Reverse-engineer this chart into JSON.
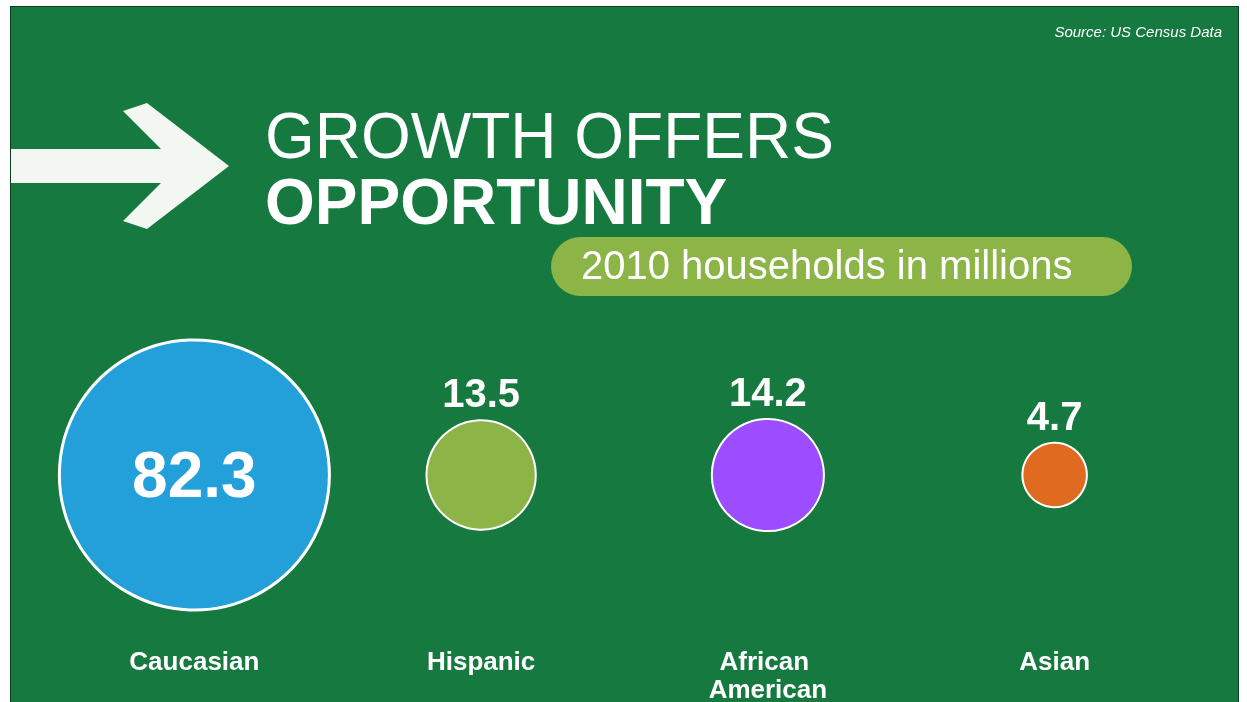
{
  "chart_data": {
    "type": "other",
    "title": "GROWTH OFFERS OPPORTUNITY",
    "subtitle": "2010 households in millions",
    "annotations": [
      "Source: US Census Data"
    ],
    "categories": [
      "Caucasian",
      "Hispanic",
      "African American",
      "Asian"
    ],
    "values": [
      82.3,
      13.5,
      14.2,
      4.7
    ],
    "colors": [
      "#23a0da",
      "#8db446",
      "#9b4dff",
      "#e06a1f"
    ],
    "data_labels": true
  }
}
